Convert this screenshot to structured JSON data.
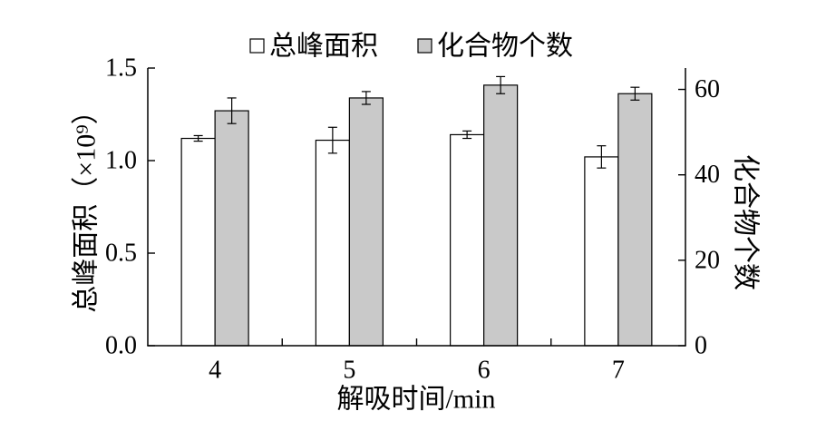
{
  "chart_data": {
    "type": "bar",
    "categories": [
      "4",
      "5",
      "6",
      "7"
    ],
    "xlabel": "解吸时间/min",
    "ylabel": "总峰面积（×10⁹）",
    "y2label": "化合物个数",
    "ylim": [
      0,
      1.5
    ],
    "y2lim": [
      0,
      65
    ],
    "ytick_labels": [
      "0.0",
      "0.5",
      "1.0",
      "1.5"
    ],
    "y2tick_labels": [
      "0",
      "20",
      "40",
      "60"
    ],
    "grid": false,
    "legend_position": "top",
    "series": [
      {
        "name": "总峰面积",
        "y_axis": 0,
        "color": "#ffffff",
        "values": [
          1.12,
          1.11,
          1.14,
          1.02
        ],
        "errors": [
          0.015,
          0.07,
          0.02,
          0.06
        ]
      },
      {
        "name": "化合物个数",
        "y_axis": 1,
        "color": "#c9c9c9",
        "values": [
          55,
          58,
          61,
          59
        ],
        "errors": [
          3,
          1.5,
          2,
          1.5
        ]
      }
    ]
  }
}
